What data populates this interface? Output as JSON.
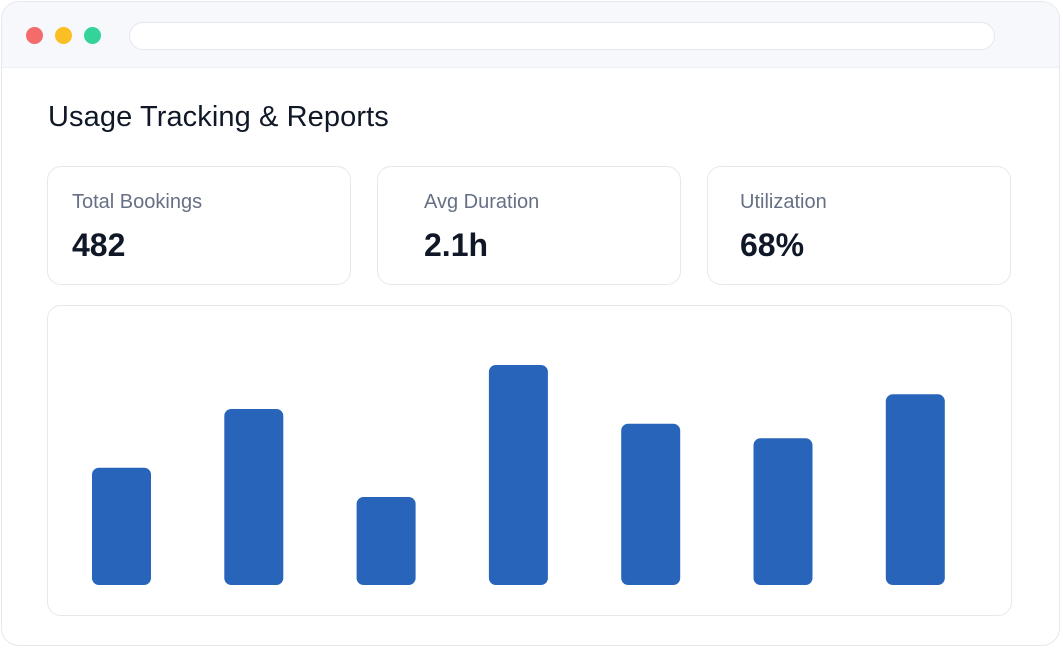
{
  "window": {
    "address_bar": "",
    "colors": {
      "close": "#f36b6b",
      "minimize": "#fbbf24",
      "maximize": "#34d399"
    }
  },
  "page": {
    "title": "Usage Tracking & Reports"
  },
  "stats": [
    {
      "label": "Total Bookings",
      "value": "482"
    },
    {
      "label": "Avg Duration",
      "value": "2.1h"
    },
    {
      "label": "Utilization",
      "value": "68%"
    }
  ],
  "chart_data": {
    "type": "bar",
    "categories": [
      "",
      "",
      "",
      "",
      "",
      "",
      ""
    ],
    "values": [
      40,
      60,
      30,
      75,
      55,
      50,
      65
    ],
    "title": "",
    "xlabel": "",
    "ylabel": "",
    "ylim": [
      0,
      75
    ],
    "grid": false,
    "bar_color": "#2764ba"
  }
}
